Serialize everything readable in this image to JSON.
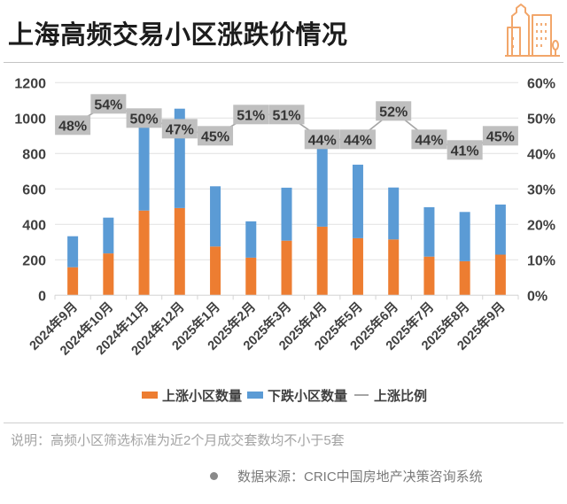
{
  "header": {
    "title": "上海高频交易小区涨跌价情况",
    "icon": "city-buildings-icon",
    "icon_color": "#F2A66A"
  },
  "chart_data": {
    "type": "bar",
    "subtype": "stacked-bar-with-line-dual-axis",
    "title": "上海高频交易小区涨跌价情况",
    "xlabel": "",
    "ylabel": "",
    "categories": [
      "2024年9月",
      "2024年10月",
      "2024年11月",
      "2024年12月",
      "2025年1月",
      "2025年2月",
      "2025年3月",
      "2025年4月",
      "2025年5月",
      "2025年6月",
      "2025年7月",
      "2025年8月",
      "2025年9月"
    ],
    "series": [
      {
        "name": "上涨小区数量",
        "type": "bar",
        "stack": "total",
        "axis": "left",
        "color": "#ED7D31",
        "values": [
          158,
          236,
          478,
          492,
          275,
          212,
          308,
          387,
          322,
          315,
          218,
          192,
          229
        ]
      },
      {
        "name": "下跌小区数量",
        "type": "bar",
        "stack": "total",
        "axis": "left",
        "color": "#5B9BD5",
        "values": [
          175,
          202,
          478,
          561,
          340,
          205,
          299,
          493,
          415,
          293,
          279,
          278,
          283
        ]
      },
      {
        "name": "上涨比例",
        "type": "line",
        "axis": "right",
        "unit": "%",
        "color": "#A5A5A5",
        "values": [
          48,
          54,
          50,
          47,
          45,
          51,
          51,
          44,
          44,
          52,
          44,
          41,
          45
        ],
        "data_labels": [
          "48%",
          "54%",
          "50%",
          "47%",
          "45%",
          "51%",
          "51%",
          "44%",
          "44%",
          "52%",
          "44%",
          "41%",
          "45%"
        ],
        "label_box_color": "#BFBFBF"
      }
    ],
    "y_left": {
      "ylim": [
        0,
        1200
      ],
      "ticks": [
        0,
        200,
        400,
        600,
        800,
        1000,
        1200
      ],
      "tick_labels": [
        "0",
        "200",
        "400",
        "600",
        "800",
        "1000",
        "1200"
      ]
    },
    "y_right": {
      "ylim": [
        0,
        60
      ],
      "ticks": [
        0,
        10,
        20,
        30,
        40,
        50,
        60
      ],
      "tick_labels": [
        "0%",
        "10%",
        "20%",
        "30%",
        "40%",
        "50%",
        "60%"
      ]
    },
    "grid": true,
    "legend": {
      "position": "bottom",
      "entries": [
        {
          "label": "上涨小区数量",
          "symbol": "square",
          "color": "#ED7D31"
        },
        {
          "label": "下跌小区数量",
          "symbol": "square",
          "color": "#5B9BD5"
        },
        {
          "label": "上涨比例",
          "symbol": "line",
          "color": "#A5A5A5"
        }
      ]
    }
  },
  "footer": {
    "note": "说明：高频小区筛选标准为近2个月成交套数均不小于5套",
    "source": "数据来源：CRIC中国房地产决策咨询系统"
  }
}
